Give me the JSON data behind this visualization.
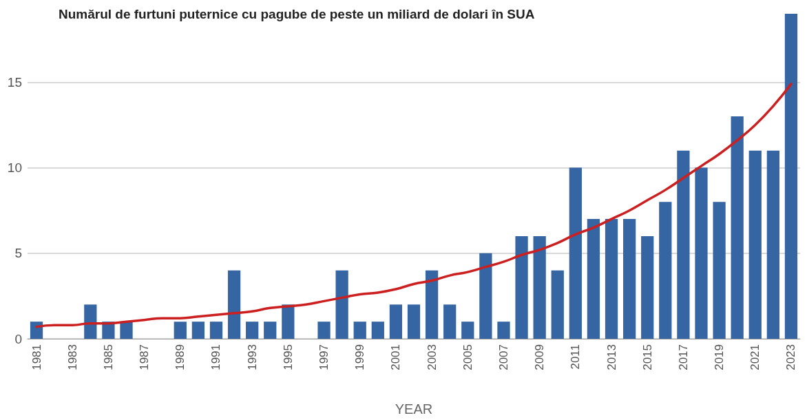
{
  "chart_data": {
    "type": "bar",
    "title": "Numărul de furtuni puternice cu pagube de peste un miliard de dolari în SUA",
    "xlabel": "YEAR",
    "categories": [
      "1981",
      null,
      "1983",
      null,
      "1985",
      null,
      "1987",
      null,
      "1989",
      null,
      "1991",
      null,
      "1993",
      null,
      "1995",
      null,
      "1997",
      null,
      "1999",
      null,
      "2001",
      null,
      "2003",
      null,
      "2005",
      null,
      "2007",
      null,
      "2009",
      null,
      "2011",
      null,
      "2013",
      null,
      "2015",
      null,
      "2017",
      null,
      "2019",
      null,
      "2021",
      null,
      "2023"
    ],
    "series": [
      {
        "color": "#3565a3",
        "values": [
          1,
          0,
          0,
          2,
          1,
          1,
          0,
          0,
          1,
          1,
          1,
          4,
          1,
          1,
          2,
          0,
          1,
          4,
          1,
          1,
          2,
          2,
          4,
          2,
          1,
          5,
          1,
          6,
          6,
          4,
          10,
          7,
          7,
          7,
          6,
          8,
          11,
          10,
          8,
          13,
          11,
          11,
          19
        ]
      },
      {
        "type": "line",
        "color": "#cc1f1f",
        "values": [
          0.7,
          0.8,
          0.8,
          0.9,
          0.9,
          1.0,
          1.1,
          1.2,
          1.2,
          1.3,
          1.4,
          1.5,
          1.6,
          1.8,
          1.9,
          2.0,
          2.2,
          2.4,
          2.6,
          2.7,
          2.9,
          3.2,
          3.4,
          3.7,
          3.9,
          4.2,
          4.5,
          4.9,
          5.2,
          5.6,
          6.1,
          6.5,
          7.0,
          7.5,
          8.1,
          8.7,
          9.4,
          10.1,
          10.8,
          11.6,
          12.5,
          13.6,
          14.9
        ]
      }
    ],
    "ylim": [
      0,
      19
    ],
    "yticks": [
      0,
      5,
      10,
      15
    ],
    "grid": "y",
    "marker": "none"
  }
}
